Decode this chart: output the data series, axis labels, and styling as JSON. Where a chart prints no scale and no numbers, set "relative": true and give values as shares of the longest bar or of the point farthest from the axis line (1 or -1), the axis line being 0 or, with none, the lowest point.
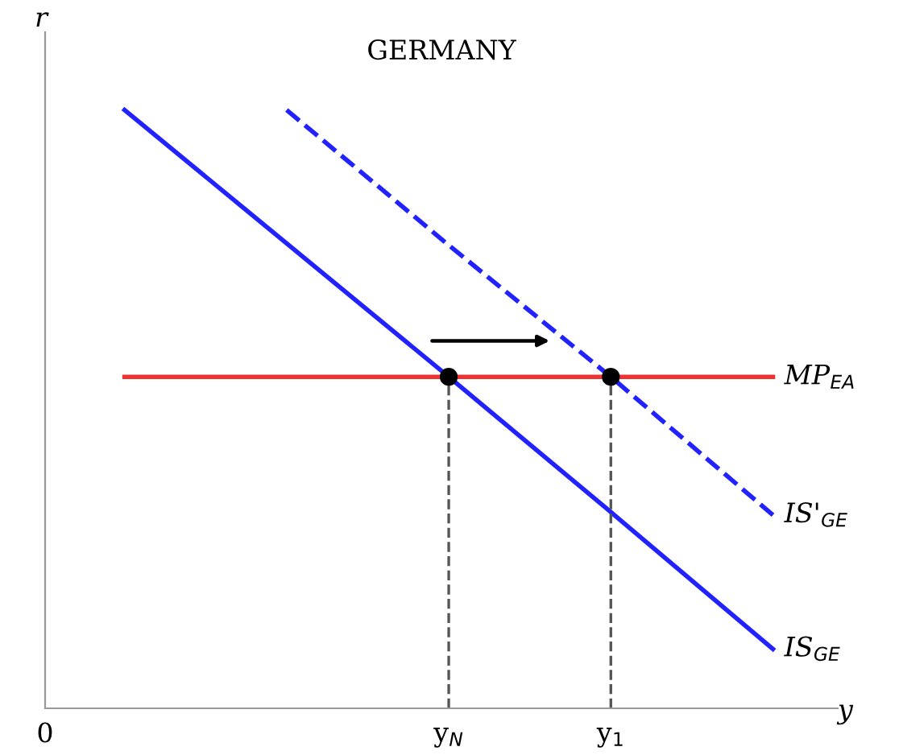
{
  "chart_data": {
    "type": "line",
    "title": "GERMANY",
    "xlabel": "y",
    "ylabel": "r",
    "relative": true,
    "categories": [
      null,
      null,
      "y$_{N}$",
      "y$_{1}$",
      null
    ],
    "annotations": [
      "0"
    ],
    "tick_labels": "x",
    "grid": false,
    "legend": false,
    "series": [
      {
        "name": "MP$_{EA}$",
        "color": "#ee3333",
        "values": [
          0.554,
          0.554,
          0.554,
          0.554,
          0.554
        ],
        "line_style": "solid"
      },
      {
        "name": "IS'$_{GE}$",
        "color": "#2222ff",
        "values": [
          null,
          1.0,
          0.774,
          0.554,
          0.323
        ],
        "line_style": "dashed"
      },
      {
        "name": "IS$_{GE}$",
        "color": "#2222ff",
        "values": [
          1.0,
          0.777,
          0.554,
          0.328,
          0.099
        ],
        "line_style": "solid"
      },
      {
        "type": "lollipop",
        "color": "#000000",
        "values": [
          null,
          null,
          0.554,
          0.554,
          null
        ],
        "line_style": "dashed",
        "marker": "circle"
      }
    ]
  }
}
